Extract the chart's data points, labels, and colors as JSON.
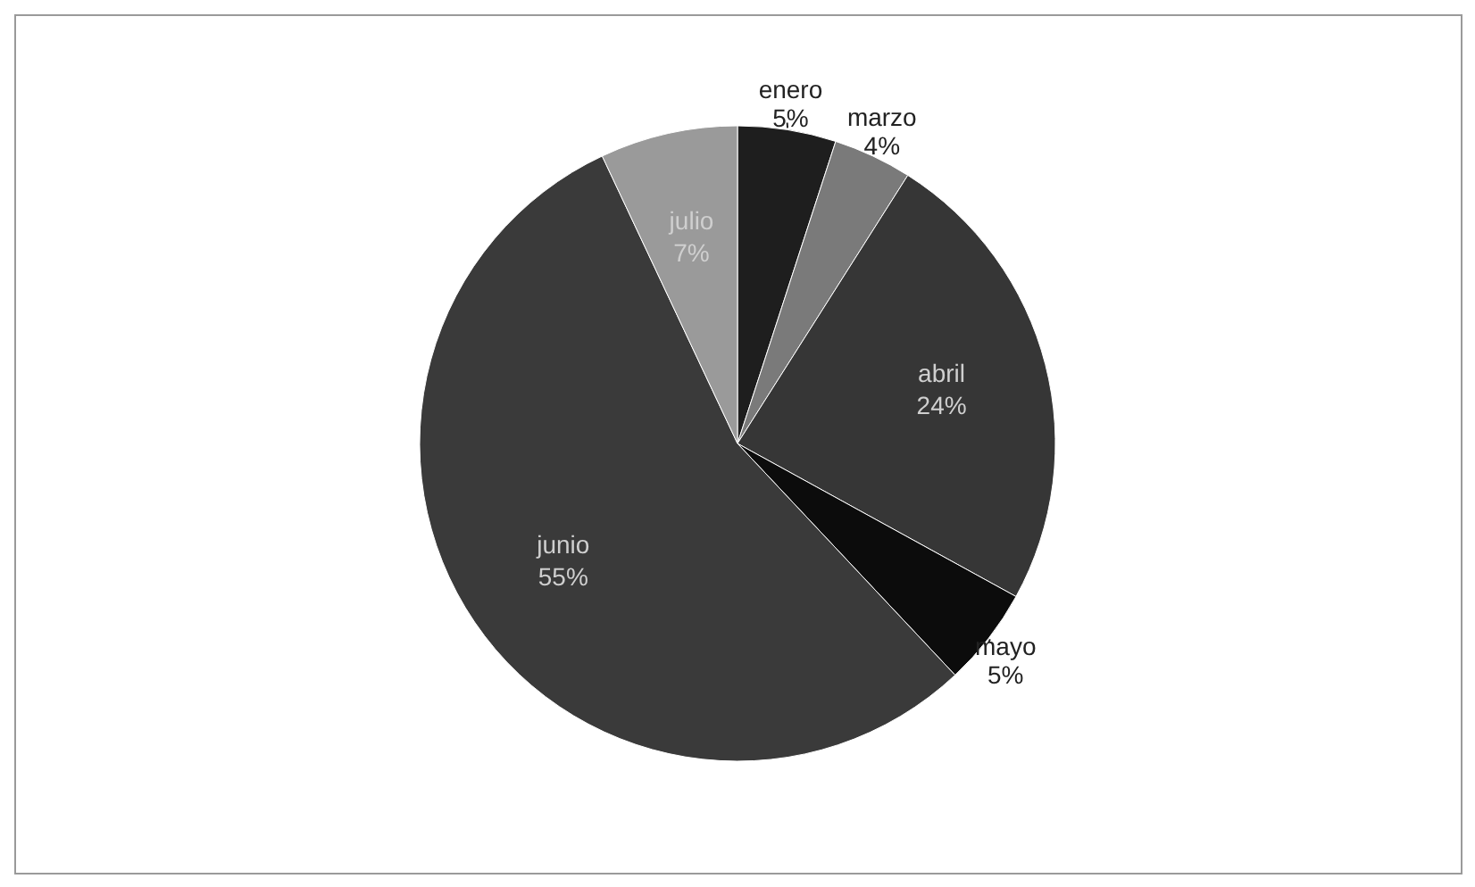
{
  "chart_data": {
    "type": "pie",
    "categories": [
      "enero",
      "marzo",
      "abril",
      "mayo",
      "junio",
      "julio"
    ],
    "values": [
      5,
      4,
      24,
      5,
      55,
      7
    ],
    "value_labels": [
      "5%",
      "4%",
      "24%",
      "5%",
      "55%",
      "7%"
    ],
    "colors": [
      "#1e1e1e",
      "#7a7a7a",
      "#363636",
      "#0c0c0c",
      "#3a3a3a",
      "#9a9a9a"
    ]
  }
}
